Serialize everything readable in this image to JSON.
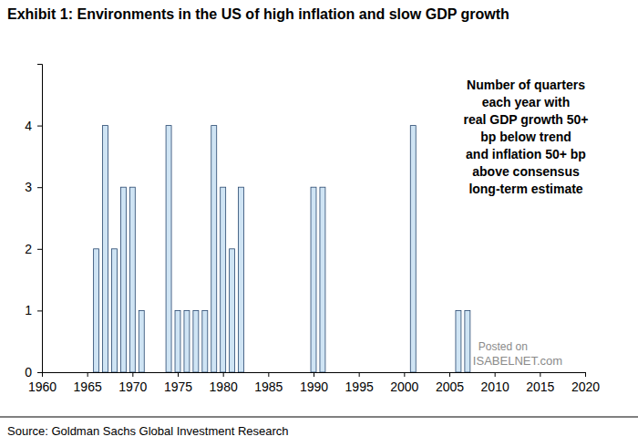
{
  "chart_data": {
    "type": "bar",
    "title": "Exhibit 1: Environments in the US of high inflation and slow GDP growth",
    "annotations": [
      "Number of quarters",
      "each year with",
      "real GDP growth 50+",
      "bp below trend",
      "and inflation 50+ bp",
      "above consensus",
      "long-term estimate"
    ],
    "source": "Source: Goldman Sachs Global Investment Research",
    "watermark": [
      "Posted on",
      "ISABELNET.com"
    ],
    "x": [
      1966,
      1967,
      1968,
      1969,
      1970,
      1971,
      1974,
      1975,
      1976,
      1977,
      1978,
      1979,
      1980,
      1981,
      1982,
      1990,
      1991,
      2001,
      2006,
      2007
    ],
    "values": [
      2,
      4,
      2,
      3,
      3,
      1,
      4,
      1,
      1,
      1,
      1,
      4,
      3,
      2,
      3,
      3,
      3,
      4,
      1,
      1
    ],
    "color": "#cfe4f4",
    "xlim": [
      1960,
      2020
    ],
    "xticks": [
      1960,
      1965,
      1970,
      1975,
      1980,
      1985,
      1990,
      1995,
      2000,
      2005,
      2010,
      2015,
      2020
    ],
    "ylim": [
      0,
      5
    ],
    "yticks": [
      0,
      1,
      2,
      3,
      4
    ],
    "grid": false
  }
}
